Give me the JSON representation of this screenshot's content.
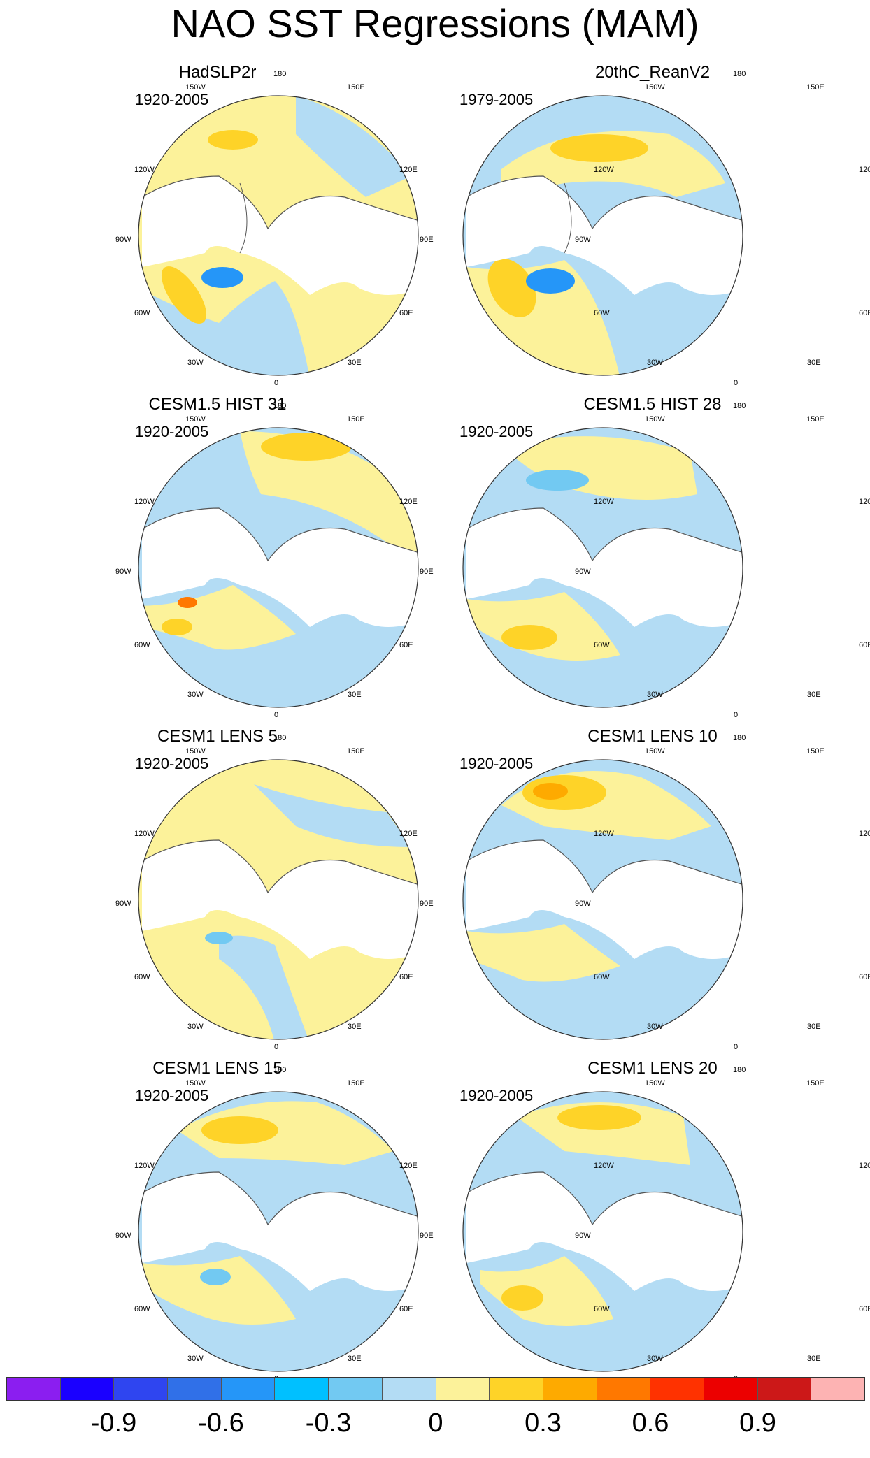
{
  "title": "NAO SST Regressions (MAM)",
  "map_labels": {
    "top": "180",
    "top_left": "150W",
    "top_right": "150E",
    "upper_left": "120W",
    "upper_right": "120E",
    "left": "90W",
    "right": "90E",
    "lower_left": "60W",
    "lower_right": "60E",
    "bottom_left": "30W",
    "bottom_right": "30E",
    "bottom": "0"
  },
  "panels": [
    {
      "title": "HadSLP2r",
      "period": "1920-2005"
    },
    {
      "title": "20thC_ReanV2",
      "period": "1979-2005"
    },
    {
      "title": "CESM1.5 HIST 31",
      "period": "1920-2005"
    },
    {
      "title": "CESM1.5 HIST 28",
      "period": "1920-2005"
    },
    {
      "title": "CESM1 LENS 5",
      "period": "1920-2005"
    },
    {
      "title": "CESM1 LENS 10",
      "period": "1920-2005"
    },
    {
      "title": "CESM1 LENS 15",
      "period": "1920-2005"
    },
    {
      "title": "CESM1 LENS 20",
      "period": "1920-2005"
    }
  ],
  "colorbar": {
    "colors": [
      "#8b1ef0",
      "#1a00ff",
      "#2f45f0",
      "#3070e8",
      "#2596f8",
      "#00c0ff",
      "#72c9f2",
      "#b3dcf4",
      "#fcf29a",
      "#fed328",
      "#feaa00",
      "#ff7800",
      "#ff3200",
      "#ec0000",
      "#cc1818",
      "#fdb3b3"
    ],
    "ticks": [
      "-0.9",
      "-0.6",
      "-0.3",
      "0",
      "0.3",
      "0.6",
      "0.9"
    ]
  },
  "colors": {
    "ocean_neutral_pos": "#fcf29a",
    "ocean_neutral_neg": "#b3dcf4",
    "land": "#ffffff",
    "coast": "#555555"
  }
}
